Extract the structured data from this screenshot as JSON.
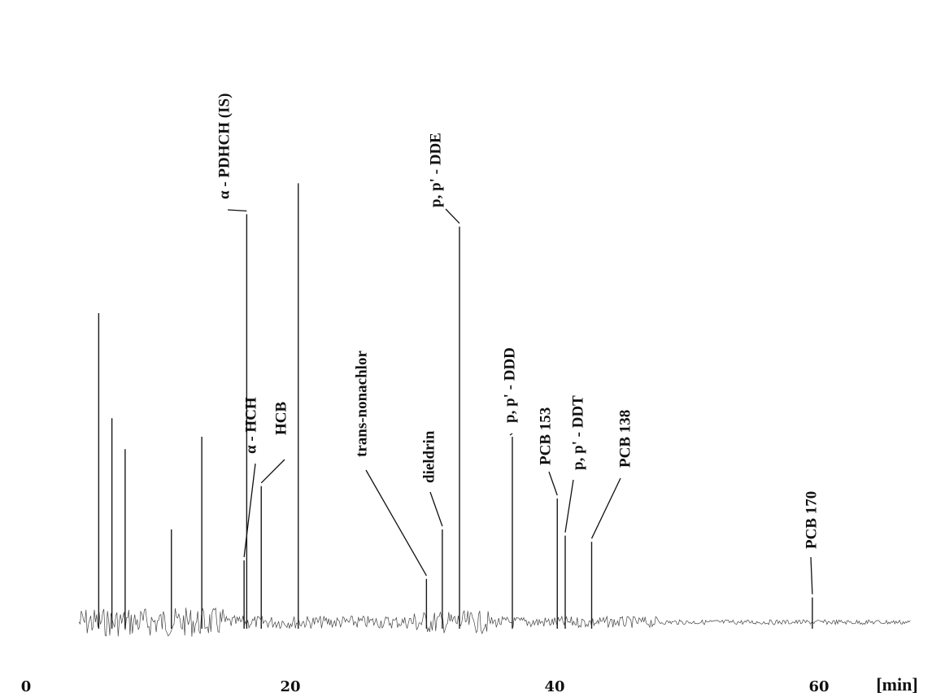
{
  "chart_data": {
    "type": "line",
    "title": "",
    "xlabel": "[min]",
    "ylabel": "",
    "xlim": [
      0,
      67
    ],
    "xticks": [
      "0",
      "20",
      "40",
      "60"
    ],
    "grid": false,
    "peaks": [
      {
        "name": "α - HCH",
        "x": 16.5,
        "height": 0.1
      },
      {
        "name": "HCB",
        "x": 17.8,
        "height": 0.22
      },
      {
        "name": "α - PDHCH (IS)",
        "x": 16.7,
        "height": 0.66
      },
      {
        "name": "trans-nonachlor",
        "x": 30.3,
        "height": 0.07
      },
      {
        "name": "dieldrin",
        "x": 31.5,
        "height": 0.15
      },
      {
        "name": "p, p' - DDE",
        "x": 32.8,
        "height": 0.64
      },
      {
        "name": "p, p' - DDD",
        "x": 36.8,
        "height": 0.3
      },
      {
        "name": "PCB 153",
        "x": 40.2,
        "height": 0.2
      },
      {
        "name": "p, p' - DDT",
        "x": 40.8,
        "height": 0.14
      },
      {
        "name": "PCB 138",
        "x": 42.8,
        "height": 0.13
      },
      {
        "name": "PCB 170",
        "x": 59.5,
        "height": 0.04
      }
    ],
    "unlabeled_peaks": [
      {
        "x": 5.5,
        "height": 0.5
      },
      {
        "x": 6.5,
        "height": 0.33
      },
      {
        "x": 7.5,
        "height": 0.28
      },
      {
        "x": 11.0,
        "height": 0.15
      },
      {
        "x": 13.3,
        "height": 0.3
      },
      {
        "x": 20.6,
        "height": 0.71
      }
    ]
  }
}
